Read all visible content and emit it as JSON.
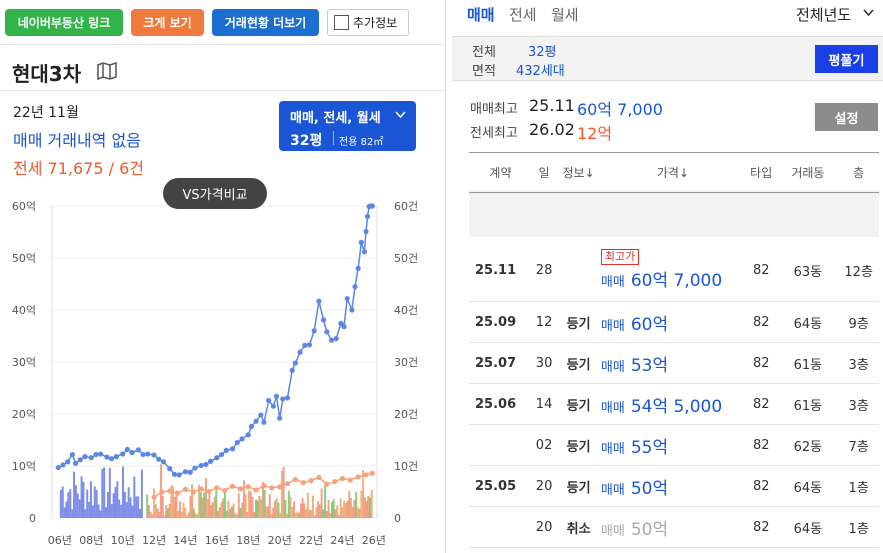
{
  "top_buttons": {
    "naver": "네이버부동산 링크",
    "bigview": "크게 보기",
    "trade_more": "거래현황 더보기",
    "extra_info": "추가정보"
  },
  "complex": {
    "name": "현대3차"
  },
  "summary": {
    "month": "22년 11월",
    "sale_text": "매매 거래내역 없음",
    "jeonse_text": "전세 71,675 / 6건"
  },
  "selector": {
    "types": "매매, 전세, 월세",
    "size": "32평",
    "exclusive": "전용 82㎡"
  },
  "vs_button": "VS가격비교",
  "chart_data": {
    "type": "line",
    "title": "",
    "xlabel": "",
    "ylabel": "",
    "x_ticks": [
      "06년",
      "08년",
      "10년",
      "12년",
      "14년",
      "16년",
      "18년",
      "20년",
      "22년",
      "24년",
      "26년"
    ],
    "y_left_ticks": [
      "0",
      "10억",
      "20억",
      "30억",
      "40억",
      "50억",
      "60억"
    ],
    "y_right_ticks": [
      "0",
      "10건",
      "20건",
      "30건",
      "40건",
      "50건",
      "60건"
    ],
    "ylim_left": [
      0,
      60
    ],
    "ylim_right": [
      0,
      60
    ],
    "grid": true,
    "series": [
      {
        "color": "#5b87e6",
        "x": [
          2005.9,
          2006.2,
          2006.5,
          2006.8,
          2007.0,
          2007.3,
          2007.6,
          2008.0,
          2008.3,
          2008.6,
          2009.0,
          2009.3,
          2009.6,
          2010.0,
          2010.3,
          2010.6,
          2011.0,
          2011.3,
          2011.6,
          2012.0,
          2012.3,
          2012.6,
          2013.0,
          2013.3,
          2013.6,
          2014.0,
          2014.3,
          2014.6,
          2015.0,
          2015.3,
          2015.6,
          2016.0,
          2016.3,
          2016.6,
          2017.0,
          2017.3,
          2017.6,
          2018.0,
          2018.2,
          2018.5,
          2018.8,
          2019.0,
          2019.3,
          2019.6,
          2019.8,
          2020.0,
          2020.2,
          2020.5,
          2020.8,
          2021.0,
          2021.3,
          2021.6,
          2021.9,
          2022.2,
          2022.5,
          2022.8,
          2023.0,
          2023.3,
          2023.6,
          2023.9,
          2024.1,
          2024.3,
          2024.6,
          2024.8,
          2025.0,
          2025.2,
          2025.4,
          2025.5,
          2025.6,
          2025.7,
          2025.8,
          2025.9
        ],
        "values": [
          9.7,
          10.2,
          10.8,
          12.2,
          10.5,
          11.2,
          11.8,
          11.6,
          12.2,
          12.3,
          11.7,
          11.4,
          11.8,
          12.3,
          13.2,
          12.6,
          13.1,
          12.2,
          12.3,
          12.1,
          11.3,
          10.8,
          9.5,
          8.4,
          8.3,
          8.9,
          8.8,
          9.6,
          10.1,
          10.3,
          10.9,
          11.6,
          12.2,
          13.0,
          13.3,
          14.5,
          15.2,
          16.0,
          17.6,
          18.6,
          19.8,
          18.4,
          22.6,
          21.5,
          23.4,
          19.2,
          22.9,
          23.1,
          28.4,
          29.8,
          31.9,
          33.2,
          33.3,
          36.0,
          41.7,
          38.1,
          35.8,
          34.2,
          34.5,
          37.4,
          36.8,
          42.2,
          40.0,
          44.5,
          48.0,
          53.0,
          51.2,
          55.1,
          58.0,
          59.9,
          60.0,
          60.0
        ]
      },
      {
        "color": "#f4a37a",
        "x": [
          2012.0,
          2012.5,
          2013.0,
          2013.5,
          2014.0,
          2014.5,
          2015.0,
          2015.5,
          2016.0,
          2016.5,
          2017.0,
          2017.5,
          2018.0,
          2018.5,
          2019.0,
          2019.5,
          2020.0,
          2020.5,
          2021.0,
          2021.5,
          2022.0,
          2022.5,
          2023.0,
          2023.5,
          2024.0,
          2024.5,
          2025.0,
          2025.5,
          2025.9
        ],
        "values": [
          4.0,
          5.0,
          5.2,
          4.8,
          5.5,
          5.0,
          5.6,
          5.1,
          5.8,
          5.3,
          6.1,
          5.6,
          6.0,
          5.4,
          6.2,
          5.8,
          6.0,
          6.6,
          7.4,
          6.8,
          7.2,
          7.8,
          6.5,
          7.0,
          7.6,
          7.3,
          7.9,
          8.3,
          8.6
        ]
      }
    ]
  },
  "right": {
    "tabs": [
      "매매",
      "전세",
      "월세"
    ],
    "period": "전체년도",
    "area_label_1": "전체",
    "area_label_2": "면적",
    "area_size": "32평",
    "area_households": "432세대",
    "pyeong_button": "평풀기",
    "sale_max_label": "매매최고",
    "sale_max_date": "25.11",
    "sale_max_price": "60억 7,000",
    "jeonse_max_label": "전세최고",
    "jeonse_max_date": "26.02",
    "jeonse_max_price": "12억",
    "settings_button": "설정",
    "columns": [
      "계약",
      "일",
      "정보↓",
      "가격↓",
      "타입",
      "거래동",
      "층"
    ],
    "rows": [
      {
        "date": "25.11",
        "day": "28",
        "info": "",
        "badge": "최고가",
        "kind": "매매",
        "price": "60억 7,000",
        "type": "82",
        "dong": "63동",
        "floor": "12층",
        "cancel": false
      },
      {
        "date": "25.09",
        "day": "12",
        "info": "등기",
        "badge": "",
        "kind": "매매",
        "price": "60억",
        "type": "82",
        "dong": "64동",
        "floor": "9층",
        "cancel": false
      },
      {
        "date": "25.07",
        "day": "30",
        "info": "등기",
        "badge": "",
        "kind": "매매",
        "price": "53억",
        "type": "82",
        "dong": "61동",
        "floor": "3층",
        "cancel": false
      },
      {
        "date": "25.06",
        "day": "14",
        "info": "등기",
        "badge": "",
        "kind": "매매",
        "price": "54억 5,000",
        "type": "82",
        "dong": "61동",
        "floor": "3층",
        "cancel": false
      },
      {
        "date": "",
        "day": "02",
        "info": "등기",
        "badge": "",
        "kind": "매매",
        "price": "55억",
        "type": "82",
        "dong": "62동",
        "floor": "7층",
        "cancel": false
      },
      {
        "date": "25.05",
        "day": "20",
        "info": "등기",
        "badge": "",
        "kind": "매매",
        "price": "50억",
        "type": "82",
        "dong": "64동",
        "floor": "1층",
        "cancel": false
      },
      {
        "date": "",
        "day": "20",
        "info": "취소",
        "badge": "",
        "kind": "매매",
        "price": "50억",
        "type": "82",
        "dong": "64동",
        "floor": "1층",
        "cancel": true
      }
    ]
  }
}
